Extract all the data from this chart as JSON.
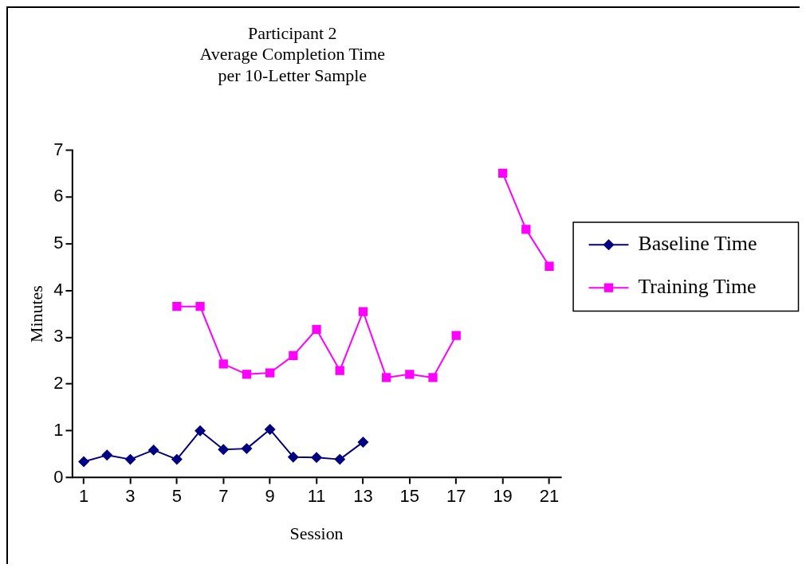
{
  "chart_data": {
    "type": "line",
    "title": "Participant 2\nAverage Completion Time\nper 10-Letter Sample",
    "xlabel": "Session",
    "ylabel": "Minutes",
    "x": [
      1,
      2,
      3,
      4,
      5,
      6,
      7,
      8,
      9,
      10,
      11,
      12,
      13,
      14,
      15,
      16,
      17,
      18,
      19,
      20,
      21
    ],
    "xlim": [
      0.5,
      21.5
    ],
    "xticks": [
      1,
      3,
      5,
      7,
      9,
      11,
      13,
      15,
      17,
      19,
      21
    ],
    "ylim": [
      0,
      7
    ],
    "yticks": [
      0,
      1,
      2,
      3,
      4,
      5,
      6,
      7
    ],
    "grid": false,
    "legend": "right",
    "line_style": "solid",
    "series": [
      {
        "name": "Baseline Time",
        "color": "#000080",
        "marker": "diamond",
        "values": [
          0.34,
          0.48,
          0.39,
          0.59,
          0.39,
          1.0,
          0.6,
          0.62,
          1.03,
          0.44,
          0.43,
          0.39,
          0.76,
          null,
          null,
          null,
          null,
          null,
          null,
          null,
          null
        ]
      },
      {
        "name": "Training Time",
        "color": "#ff00ff",
        "marker": "square",
        "values": [
          null,
          null,
          null,
          null,
          3.66,
          3.66,
          2.43,
          2.21,
          2.24,
          2.61,
          3.17,
          2.29,
          3.55,
          2.14,
          2.21,
          2.14,
          3.04,
          null,
          6.51,
          5.31,
          4.52
        ]
      }
    ]
  }
}
